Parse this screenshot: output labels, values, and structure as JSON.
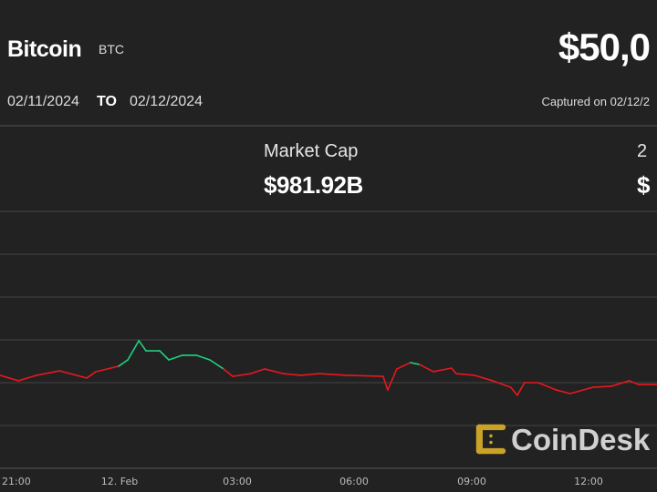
{
  "header": {
    "asset_name": "Bitcoin",
    "asset_symbol": "BTC",
    "price": "$50,0",
    "date_from": "02/11/2024",
    "date_to_label": "TO",
    "date_to": "02/12/2024",
    "captured": "Captured on 02/12/2"
  },
  "stats": {
    "market_cap_label": "Market Cap",
    "market_cap_value": "$981.92B",
    "right_label_partial": "2",
    "right_value_partial": "$"
  },
  "logo": {
    "text": "CoinDesk",
    "color": "#f0b90b"
  },
  "colors": {
    "background": "#222222",
    "up": "#1fd17f",
    "down": "#e8171f",
    "grid": "#444444"
  },
  "chart_data": {
    "type": "line",
    "title": "",
    "xlabel": "",
    "ylabel": "",
    "x_ticks": [
      "21:00",
      "12. Feb",
      "03:00",
      "06:00",
      "09:00",
      "12:00"
    ],
    "grid": true,
    "y_unit": "USD (estimated, no y-axis labels shown)",
    "series": [
      {
        "points": [
          [
            "20:56",
            50043
          ],
          [
            "21:24",
            50011
          ],
          [
            "21:52",
            50043
          ],
          [
            "22:27",
            50069
          ],
          [
            "23:09",
            50027
          ],
          [
            "23:23",
            50064
          ],
          [
            "23:58",
            50096
          ],
          [
            "00:12",
            50133
          ],
          [
            "00:29",
            50245
          ],
          [
            "00:40",
            50186
          ],
          [
            "01:01",
            50186
          ],
          [
            "01:15",
            50133
          ],
          [
            "01:36",
            50160
          ],
          [
            "01:57",
            50160
          ],
          [
            "02:18",
            50133
          ],
          [
            "02:39",
            50080
          ],
          [
            "02:53",
            50037
          ],
          [
            "03:21",
            50053
          ],
          [
            "03:42",
            50080
          ],
          [
            "04:10",
            50053
          ],
          [
            "04:38",
            50043
          ],
          [
            "05:06",
            50053
          ],
          [
            "05:48",
            50043
          ],
          [
            "06:44",
            50037
          ],
          [
            "06:51",
            49957
          ],
          [
            "07:05",
            50080
          ],
          [
            "07:26",
            50117
          ],
          [
            "07:40",
            50106
          ],
          [
            "08:01",
            50064
          ],
          [
            "08:29",
            50085
          ],
          [
            "08:36",
            50053
          ],
          [
            "09:04",
            50043
          ],
          [
            "09:32",
            50011
          ],
          [
            "10:00",
            49973
          ],
          [
            "10:10",
            49926
          ],
          [
            "10:21",
            50000
          ],
          [
            "10:42",
            50000
          ],
          [
            "11:10",
            49957
          ],
          [
            "11:31",
            49936
          ],
          [
            "12:06",
            49973
          ],
          [
            "12:34",
            49979
          ],
          [
            "13:02",
            50011
          ],
          [
            "13:16",
            49989
          ],
          [
            "13:44",
            49989
          ]
        ]
      }
    ]
  }
}
